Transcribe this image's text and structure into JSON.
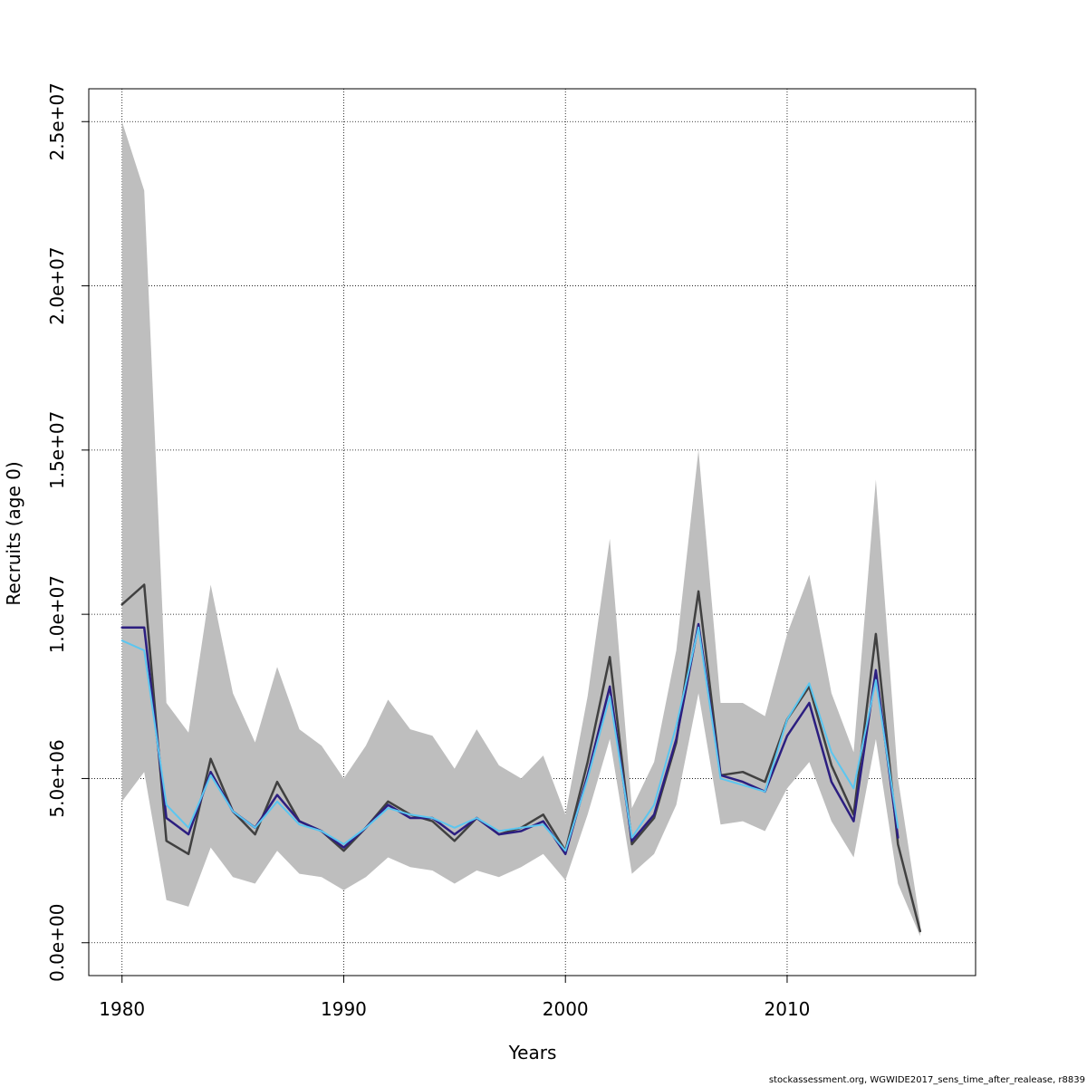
{
  "chart_data": {
    "type": "line",
    "title": "",
    "xlabel": "Years",
    "ylabel": "Recruits (age 0)",
    "xlim": [
      1978.5,
      2018.5
    ],
    "ylim": [
      -1000000,
      26000000
    ],
    "x_ticks": [
      1980,
      1990,
      2000,
      2010
    ],
    "x_tick_labels": [
      "1980",
      "1990",
      "2000",
      "2010"
    ],
    "y_ticks": [
      0,
      5000000,
      10000000,
      15000000,
      20000000,
      25000000
    ],
    "y_tick_labels": [
      "0.0e+00",
      "5.0e+06",
      "1.0e+07",
      "1.5e+07",
      "2.0e+07",
      "2.5e+07"
    ],
    "grid": true,
    "years": [
      1980,
      1981,
      1982,
      1983,
      1984,
      1985,
      1986,
      1987,
      1988,
      1989,
      1990,
      1991,
      1992,
      1993,
      1994,
      1995,
      1996,
      1997,
      1998,
      1999,
      2000,
      2001,
      2002,
      2003,
      2004,
      2005,
      2006,
      2007,
      2008,
      2009,
      2010,
      2011,
      2012,
      2013,
      2014,
      2015,
      2016
    ],
    "confidence_band": {
      "color": "#bebebe",
      "upper": [
        25000000,
        22900000,
        7300000,
        6400000,
        10900000,
        7600000,
        6100000,
        8400000,
        6500000,
        6000000,
        5000000,
        6000000,
        7400000,
        6500000,
        6300000,
        5300000,
        6500000,
        5400000,
        5000000,
        5700000,
        3900000,
        7500000,
        12300000,
        4100000,
        5500000,
        8900000,
        15000000,
        7300000,
        7300000,
        6900000,
        9400000,
        11200000,
        7600000,
        5800000,
        14100000,
        5000000,
        600000
      ],
      "lower": [
        4300000,
        5200000,
        1300000,
        1100000,
        2900000,
        2000000,
        1800000,
        2800000,
        2100000,
        2000000,
        1600000,
        2000000,
        2600000,
        2300000,
        2200000,
        1800000,
        2200000,
        2000000,
        2300000,
        2700000,
        1900000,
        3900000,
        6200000,
        2100000,
        2700000,
        4200000,
        7600000,
        3600000,
        3700000,
        3400000,
        4700000,
        5500000,
        3700000,
        2600000,
        6200000,
        1800000,
        200000
      ]
    },
    "series": [
      {
        "color": "#404040",
        "width": 2.5,
        "values": [
          10300000,
          10900000,
          3100000,
          2700000,
          5600000,
          4000000,
          3300000,
          4900000,
          3700000,
          3400000,
          2800000,
          3500000,
          4300000,
          3900000,
          3700000,
          3100000,
          3800000,
          3300000,
          3500000,
          3900000,
          2800000,
          5500000,
          8700000,
          3000000,
          3800000,
          6100000,
          10700000,
          5100000,
          5200000,
          4900000,
          6800000,
          7800000,
          5400000,
          3900000,
          9400000,
          3000000,
          350000
        ]
      },
      {
        "color": "#2c1e80",
        "width": 2.5,
        "values": [
          9600000,
          9600000,
          3800000,
          3300000,
          5200000,
          4000000,
          3500000,
          4500000,
          3700000,
          3400000,
          2900000,
          3500000,
          4200000,
          3800000,
          3800000,
          3300000,
          3800000,
          3300000,
          3400000,
          3700000,
          2700000,
          5100000,
          7800000,
          3100000,
          3900000,
          6200000,
          9700000,
          5100000,
          4900000,
          4600000,
          6300000,
          7300000,
          4900000,
          3700000,
          8300000,
          3200000,
          null
        ]
      },
      {
        "color": "#5bc6f0",
        "width": 2,
        "values": [
          9200000,
          8900000,
          4200000,
          3500000,
          5100000,
          4000000,
          3500000,
          4300000,
          3600000,
          3400000,
          3000000,
          3500000,
          4100000,
          3900000,
          3800000,
          3500000,
          3800000,
          3400000,
          3500000,
          3600000,
          2800000,
          5000000,
          7500000,
          3200000,
          4200000,
          6600000,
          9600000,
          5000000,
          4800000,
          4600000,
          6800000,
          7900000,
          5800000,
          4700000,
          8000000,
          3500000,
          null
        ]
      }
    ]
  },
  "footer": {
    "text": "stockassessment.org, WGWIDE2017_sens_time_after_realease, r8839"
  }
}
